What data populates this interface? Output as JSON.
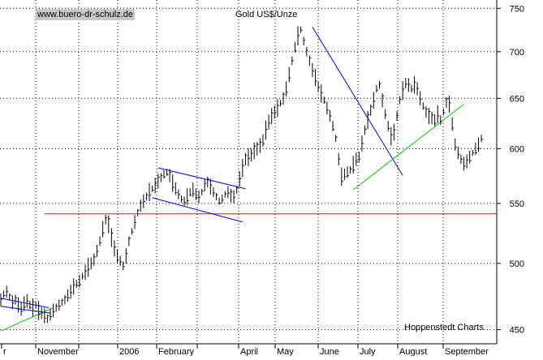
{
  "header": {
    "site_badge": "www.buero-dr-schulz.de",
    "title": "Gold US$/Unze"
  },
  "footer": {
    "source": "Hoppenstedt Charts"
  },
  "chart_data": {
    "type": "ohlc",
    "title": "Gold US$/Unze",
    "xlabel": "",
    "ylabel": "",
    "yscale": "log",
    "ylim": [
      440,
      760
    ],
    "y_ticks": [
      450,
      500,
      550,
      600,
      650,
      700,
      750
    ],
    "x_ticks": [
      "r",
      "November",
      "",
      "2006",
      "February",
      "",
      "April",
      "May",
      "June",
      "July",
      "August",
      "September"
    ],
    "grid": true,
    "colors": {
      "price": "#000000",
      "horizontal_support": "#ff0000",
      "trend_green": "#00cc00",
      "trend_blue": "#0000ff",
      "grid": "#000000"
    },
    "series": [
      {
        "values": [
          [
            0,
            472
          ],
          [
            2,
            476
          ],
          [
            4,
            478
          ],
          [
            6,
            474
          ],
          [
            8,
            470
          ],
          [
            10,
            472
          ],
          [
            12,
            468
          ],
          [
            14,
            465
          ],
          [
            16,
            469
          ],
          [
            18,
            471
          ],
          [
            20,
            468
          ],
          [
            22,
            466
          ],
          [
            24,
            468
          ],
          [
            26,
            464
          ],
          [
            28,
            462
          ],
          [
            30,
            460
          ],
          [
            32,
            458
          ],
          [
            34,
            461
          ],
          [
            36,
            464
          ],
          [
            38,
            466
          ],
          [
            40,
            468
          ],
          [
            42,
            470
          ],
          [
            44,
            472
          ],
          [
            46,
            475
          ],
          [
            48,
            478
          ],
          [
            50,
            482
          ],
          [
            52,
            484
          ],
          [
            54,
            486
          ],
          [
            56,
            490
          ],
          [
            58,
            493
          ],
          [
            60,
            497
          ],
          [
            62,
            500
          ],
          [
            64,
            503
          ],
          [
            66,
            510
          ],
          [
            68,
            518
          ],
          [
            70,
            528
          ],
          [
            72,
            536
          ],
          [
            74,
            532
          ],
          [
            76,
            521
          ],
          [
            78,
            512
          ],
          [
            80,
            506
          ],
          [
            82,
            502
          ],
          [
            84,
            498
          ],
          [
            86,
            506
          ],
          [
            88,
            518
          ],
          [
            90,
            526
          ],
          [
            92,
            534
          ],
          [
            94,
            542
          ],
          [
            96,
            548
          ],
          [
            98,
            552
          ],
          [
            100,
            556
          ],
          [
            102,
            560
          ],
          [
            104,
            563
          ],
          [
            106,
            566
          ],
          [
            108,
            570
          ],
          [
            110,
            573
          ],
          [
            112,
            576
          ],
          [
            114,
            578
          ],
          [
            116,
            575
          ],
          [
            118,
            568
          ],
          [
            120,
            563
          ],
          [
            122,
            558
          ],
          [
            124,
            554
          ],
          [
            126,
            552
          ],
          [
            128,
            556
          ],
          [
            130,
            560
          ],
          [
            132,
            562
          ],
          [
            134,
            558
          ],
          [
            136,
            556
          ],
          [
            138,
            560
          ],
          [
            140,
            566
          ],
          [
            142,
            569
          ],
          [
            144,
            565
          ],
          [
            146,
            560
          ],
          [
            148,
            556
          ],
          [
            150,
            552
          ],
          [
            152,
            554
          ],
          [
            154,
            558
          ],
          [
            156,
            560
          ],
          [
            158,
            557
          ],
          [
            160,
            556
          ],
          [
            162,
            562
          ],
          [
            164,
            572
          ],
          [
            166,
            582
          ],
          [
            168,
            590
          ],
          [
            170,
            592
          ],
          [
            172,
            594
          ],
          [
            174,
            598
          ],
          [
            176,
            600
          ],
          [
            178,
            603
          ],
          [
            180,
            608
          ],
          [
            182,
            618
          ],
          [
            184,
            626
          ],
          [
            186,
            632
          ],
          [
            188,
            636
          ],
          [
            190,
            640
          ],
          [
            192,
            645
          ],
          [
            194,
            650
          ],
          [
            196,
            660
          ],
          [
            198,
            675
          ],
          [
            200,
            690
          ],
          [
            202,
            705
          ],
          [
            204,
            718
          ],
          [
            206,
            725
          ],
          [
            208,
            712
          ],
          [
            210,
            700
          ],
          [
            212,
            690
          ],
          [
            214,
            680
          ],
          [
            216,
            672
          ],
          [
            218,
            662
          ],
          [
            220,
            655
          ],
          [
            222,
            648
          ],
          [
            224,
            640
          ],
          [
            226,
            632
          ],
          [
            228,
            622
          ],
          [
            230,
            610
          ],
          [
            232,
            590
          ],
          [
            234,
            574
          ],
          [
            236,
            576
          ],
          [
            238,
            578
          ],
          [
            240,
            580
          ],
          [
            242,
            585
          ],
          [
            244,
            590
          ],
          [
            246,
            592
          ],
          [
            248,
            605
          ],
          [
            250,
            618
          ],
          [
            252,
            628
          ],
          [
            254,
            638
          ],
          [
            256,
            648
          ],
          [
            258,
            660
          ],
          [
            260,
            664
          ],
          [
            262,
            648
          ],
          [
            264,
            634
          ],
          [
            266,
            622
          ],
          [
            268,
            612
          ],
          [
            270,
            616
          ],
          [
            272,
            632
          ],
          [
            274,
            648
          ],
          [
            276,
            658
          ],
          [
            278,
            666
          ],
          [
            280,
            664
          ],
          [
            282,
            660
          ],
          [
            284,
            664
          ],
          [
            286,
            660
          ],
          [
            288,
            650
          ],
          [
            290,
            642
          ],
          [
            292,
            636
          ],
          [
            294,
            632
          ],
          [
            296,
            630
          ],
          [
            298,
            628
          ],
          [
            300,
            634
          ],
          [
            302,
            628
          ],
          [
            304,
            636
          ],
          [
            306,
            646
          ],
          [
            308,
            644
          ],
          [
            310,
            624
          ],
          [
            312,
            604
          ],
          [
            314,
            596
          ],
          [
            316,
            590
          ],
          [
            318,
            586
          ],
          [
            320,
            588
          ],
          [
            322,
            592
          ],
          [
            324,
            596
          ],
          [
            326,
            600
          ],
          [
            328,
            604
          ],
          [
            330,
            610
          ]
        ]
      }
    ],
    "overlays": [
      {
        "kind": "horizontal",
        "y": 541,
        "color": "#ff0000"
      },
      {
        "kind": "trendline",
        "from": [
          0,
          473
        ],
        "to": [
          33,
          466
        ],
        "color": "#0000ff"
      },
      {
        "kind": "trendline",
        "from": [
          0,
          467
        ],
        "to": [
          34,
          462
        ],
        "color": "#0000ff"
      },
      {
        "kind": "trendline",
        "from": [
          0,
          449
        ],
        "to": [
          36,
          466
        ],
        "color": "#00cc00"
      },
      {
        "kind": "trendline",
        "from": [
          108,
          582
        ],
        "to": [
          168,
          563
        ],
        "color": "#0000ff"
      },
      {
        "kind": "trendline",
        "from": [
          104,
          555
        ],
        "to": [
          166,
          534
        ],
        "color": "#0000ff"
      },
      {
        "kind": "trendline",
        "from": [
          214,
          728
        ],
        "to": [
          276,
          575
        ],
        "color": "#0000ff"
      },
      {
        "kind": "trendline",
        "from": [
          242,
          562
        ],
        "to": [
          318,
          644
        ],
        "color": "#00cc00"
      }
    ]
  }
}
